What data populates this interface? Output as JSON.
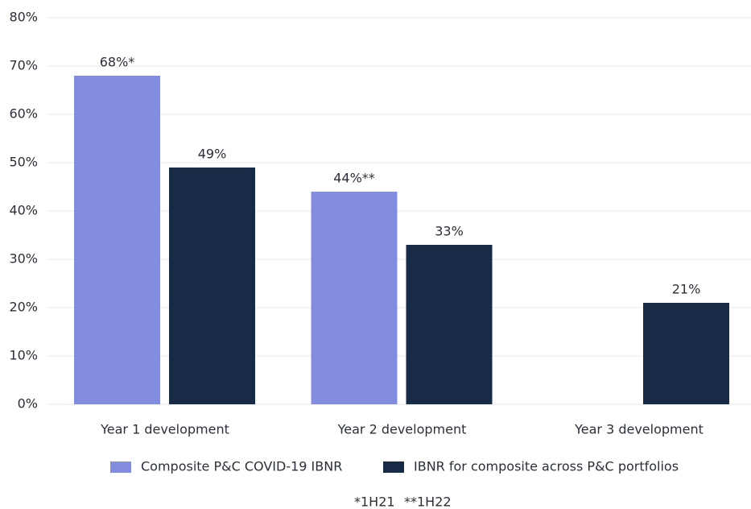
{
  "chart_data": {
    "type": "bar",
    "categories": [
      "Year 1 development",
      "Year 2 development",
      "Year 3 development"
    ],
    "series": [
      {
        "name": "Composite P&C COVID-19 IBNR",
        "color": "#838de0",
        "values": [
          68,
          44,
          null
        ],
        "value_labels": [
          "68%*",
          "44%**",
          null
        ]
      },
      {
        "name": "IBNR for composite across P&C portfolios",
        "color": "#172b47",
        "values": [
          49,
          33,
          21
        ],
        "value_labels": [
          "49%",
          "33%",
          "21%"
        ]
      }
    ],
    "ylim": [
      0,
      80
    ],
    "yticks": [
      {
        "value": 0,
        "label": "0%"
      },
      {
        "value": 10,
        "label": "10%"
      },
      {
        "value": 20,
        "label": "20%"
      },
      {
        "value": 30,
        "label": "30%"
      },
      {
        "value": 40,
        "label": "40%"
      },
      {
        "value": 50,
        "label": "50%"
      },
      {
        "value": 60,
        "label": "60%"
      },
      {
        "value": 70,
        "label": "70%"
      },
      {
        "value": 80,
        "label": "80%"
      }
    ],
    "grid": true,
    "legend": "bottom",
    "annotations": [
      "*1H21",
      "**1H22"
    ]
  }
}
